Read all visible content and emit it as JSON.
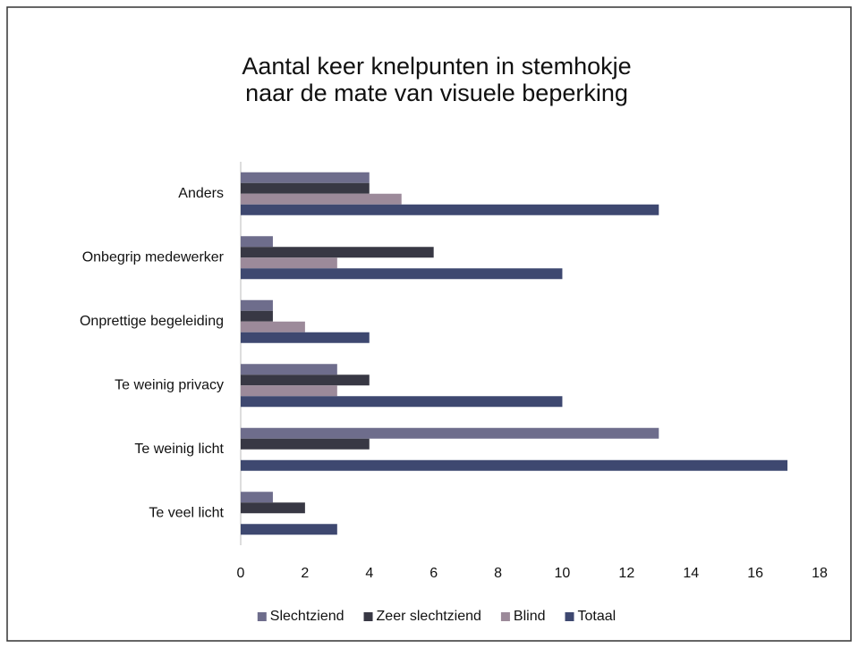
{
  "chart_data": {
    "type": "bar",
    "orientation": "horizontal",
    "title": [
      "Aantal keer knelpunten in stemhokje",
      "naar de mate van visuele beperking"
    ],
    "categories": [
      "Anders",
      "Onbegrip medewerker",
      "Onprettige begeleiding",
      "Te weinig privacy",
      "Te weinig licht",
      "Te veel licht"
    ],
    "series": [
      {
        "name": "Slechtziend",
        "color": "#6e6d8c",
        "values": [
          4,
          1,
          1,
          3,
          13,
          1
        ]
      },
      {
        "name": "Zeer slechtziend",
        "color": "#383844",
        "values": [
          4,
          6,
          1,
          4,
          4,
          2
        ]
      },
      {
        "name": "Blind",
        "color": "#9c8a9a",
        "values": [
          5,
          3,
          2,
          3,
          0,
          0
        ]
      },
      {
        "name": "Totaal",
        "color": "#3e4870",
        "values": [
          13,
          10,
          4,
          10,
          17,
          3
        ]
      }
    ],
    "xlim": [
      0,
      18
    ],
    "xticks": [
      0,
      2,
      4,
      6,
      8,
      10,
      12,
      14,
      16,
      18
    ],
    "grid": false,
    "legend": "bottom"
  }
}
